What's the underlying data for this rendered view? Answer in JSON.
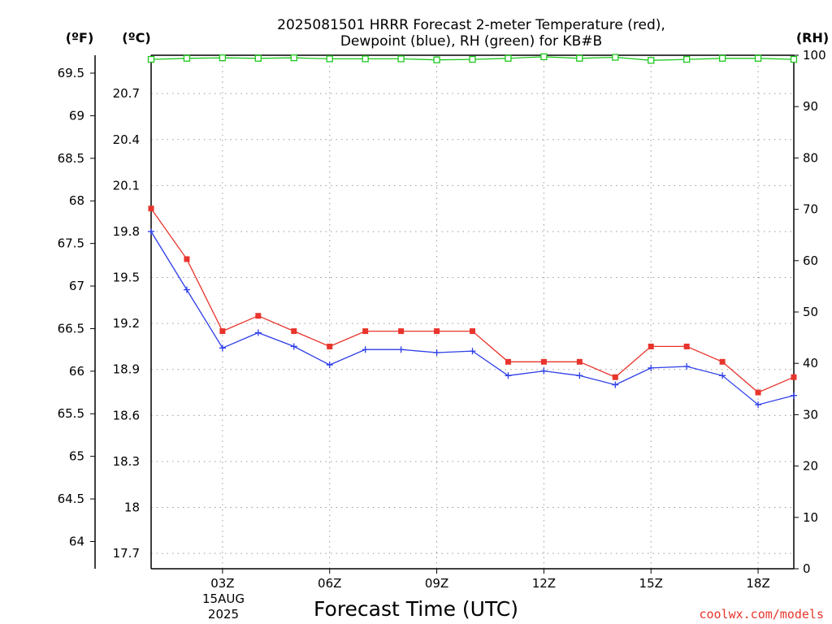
{
  "chart_data": {
    "type": "line",
    "title_lines": [
      "2025081501 HRRR Forecast 2-meter Temperature (red),",
      "Dewpoint (blue), RH (green) for KB#B"
    ],
    "xlabel": "Forecast Time (UTC)",
    "date_label": [
      "15AUG",
      "2025"
    ],
    "credit": "coolwx.com/models",
    "units": {
      "fahrenheit": "(ºF)",
      "celsius": "(ºC)",
      "rh": "(RH)"
    },
    "x_hours": [
      1,
      2,
      3,
      4,
      5,
      6,
      7,
      8,
      9,
      10,
      11,
      12,
      13,
      14,
      15,
      16,
      17,
      18,
      19
    ],
    "x_ticks": [
      {
        "hour": 3,
        "label": "03Z"
      },
      {
        "hour": 6,
        "label": "06Z"
      },
      {
        "hour": 9,
        "label": "09Z"
      },
      {
        "hour": 12,
        "label": "12Z"
      },
      {
        "hour": 15,
        "label": "15Z"
      },
      {
        "hour": 18,
        "label": "18Z"
      }
    ],
    "xlim": [
      1,
      19
    ],
    "ylim_celsius": [
      17.6,
      20.95
    ],
    "ylim_rh": [
      0,
      100
    ],
    "celsius_ticks": [
      "17.7",
      "18",
      "18.3",
      "18.6",
      "18.9",
      "19.2",
      "19.5",
      "19.8",
      "20.1",
      "20.4",
      "20.7"
    ],
    "fahrenheit_ticks": [
      "64",
      "64.5",
      "65",
      "65.5",
      "66",
      "66.5",
      "67",
      "67.5",
      "68",
      "68.5",
      "69",
      "69.5"
    ],
    "rh_ticks": [
      "0",
      "10",
      "20",
      "30",
      "40",
      "50",
      "60",
      "70",
      "80",
      "90",
      "100"
    ],
    "grid": true,
    "series": [
      {
        "name": "Temperature (red)",
        "axis": "celsius",
        "color": "#e8342c",
        "marker": "filled-square",
        "values": [
          19.95,
          19.62,
          19.15,
          19.25,
          19.15,
          19.05,
          19.15,
          19.15,
          19.15,
          19.15,
          18.95,
          18.95,
          18.95,
          18.85,
          19.05,
          19.05,
          18.95,
          18.75,
          18.85
        ]
      },
      {
        "name": "Dewpoint (blue)",
        "axis": "celsius",
        "color": "#2d3ee8",
        "marker": "plus",
        "values": [
          19.8,
          19.42,
          19.04,
          19.14,
          19.05,
          18.93,
          19.03,
          19.03,
          19.01,
          19.02,
          18.86,
          18.89,
          18.86,
          18.8,
          18.91,
          18.92,
          18.86,
          18.67,
          18.73
        ]
      },
      {
        "name": "RH (green)",
        "axis": "rh",
        "color": "#1ec81e",
        "marker": "open-square",
        "values": [
          99.2,
          99.4,
          99.5,
          99.4,
          99.5,
          99.3,
          99.3,
          99.3,
          99.1,
          99.2,
          99.4,
          99.7,
          99.4,
          99.6,
          99.0,
          99.2,
          99.4,
          99.4,
          99.2
        ]
      }
    ]
  }
}
